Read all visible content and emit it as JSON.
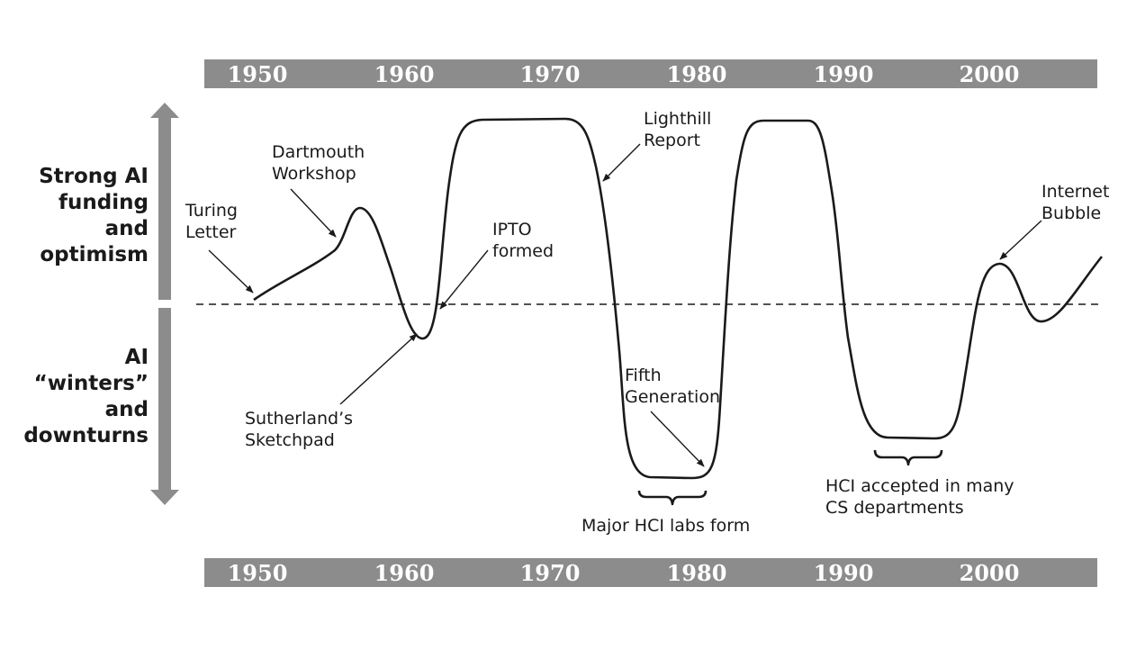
{
  "timeline": {
    "years": [
      "1950",
      "1960",
      "1970",
      "1980",
      "1990",
      "2000"
    ]
  },
  "side_labels": {
    "optimism": [
      "Strong AI",
      "funding",
      "and",
      "optimism"
    ],
    "winters": [
      "AI",
      "“winters”",
      "and",
      "downturns"
    ]
  },
  "annotations": {
    "turing": [
      "Turing",
      "Letter"
    ],
    "dartmouth": [
      "Dartmouth",
      "Workshop"
    ],
    "ipto": [
      "IPTO",
      "formed"
    ],
    "lighthill": [
      "Lighthill",
      "Report"
    ],
    "sketchpad": [
      "Sutherland’s",
      "Sketchpad"
    ],
    "fifth": [
      "Fifth",
      "Generation"
    ],
    "hci_labs": "Major HCI labs form",
    "hci_cs": [
      "HCI accepted in many",
      "CS departments"
    ],
    "internet": [
      "Internet",
      "Bubble"
    ]
  },
  "colors": {
    "band": "#8c8c8d",
    "line": "#1a1a1a"
  }
}
